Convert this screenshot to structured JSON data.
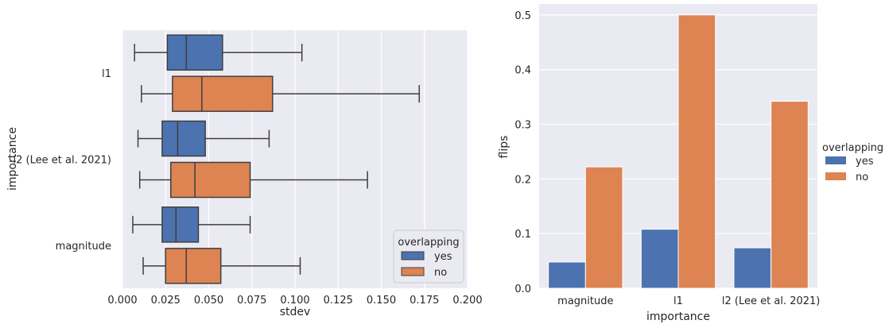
{
  "chart_data": [
    {
      "type": "boxplot",
      "orientation": "horizontal",
      "title": "",
      "xlabel": "stdev",
      "ylabel": "importance",
      "xlim": [
        0.0,
        0.2
      ],
      "xticks": [
        "0.000",
        "0.025",
        "0.050",
        "0.075",
        "0.100",
        "0.125",
        "0.150",
        "0.175",
        "0.200"
      ],
      "grid": true,
      "categories": [
        "l1",
        "l2 (Lee et al. 2021)",
        "magnitude"
      ],
      "legend": {
        "title": "overlapping",
        "entries": [
          "yes",
          "no"
        ],
        "placement": "lower-right"
      },
      "series": [
        {
          "name": "yes",
          "color": "#4C72B0",
          "boxes": [
            {
              "whisker_low": 0.007,
              "q1": 0.026,
              "median": 0.037,
              "q3": 0.058,
              "whisker_high": 0.104
            },
            {
              "whisker_low": 0.009,
              "q1": 0.023,
              "median": 0.032,
              "q3": 0.048,
              "whisker_high": 0.085
            },
            {
              "whisker_low": 0.006,
              "q1": 0.023,
              "median": 0.031,
              "q3": 0.044,
              "whisker_high": 0.074
            }
          ]
        },
        {
          "name": "no",
          "color": "#DD8452",
          "boxes": [
            {
              "whisker_low": 0.011,
              "q1": 0.029,
              "median": 0.046,
              "q3": 0.087,
              "whisker_high": 0.172
            },
            {
              "whisker_low": 0.01,
              "q1": 0.028,
              "median": 0.042,
              "q3": 0.074,
              "whisker_high": 0.142
            },
            {
              "whisker_low": 0.012,
              "q1": 0.025,
              "median": 0.037,
              "q3": 0.057,
              "whisker_high": 0.103
            }
          ]
        }
      ]
    },
    {
      "type": "bar",
      "title": "",
      "xlabel": "importance",
      "ylabel": "flips",
      "ylim": [
        0.0,
        0.52
      ],
      "yticks": [
        "0.0",
        "0.1",
        "0.2",
        "0.3",
        "0.4",
        "0.5"
      ],
      "grid": true,
      "categories": [
        "magnitude",
        "l1",
        "l2 (Lee et al. 2021)"
      ],
      "legend": {
        "title": "overlapping",
        "entries": [
          "yes",
          "no"
        ],
        "placement": "outside-right"
      },
      "series": [
        {
          "name": "yes",
          "color": "#4C72B0",
          "values": [
            0.048,
            0.108,
            0.074
          ]
        },
        {
          "name": "no",
          "color": "#DD8452",
          "values": [
            0.222,
            0.5,
            0.342
          ]
        }
      ]
    }
  ]
}
